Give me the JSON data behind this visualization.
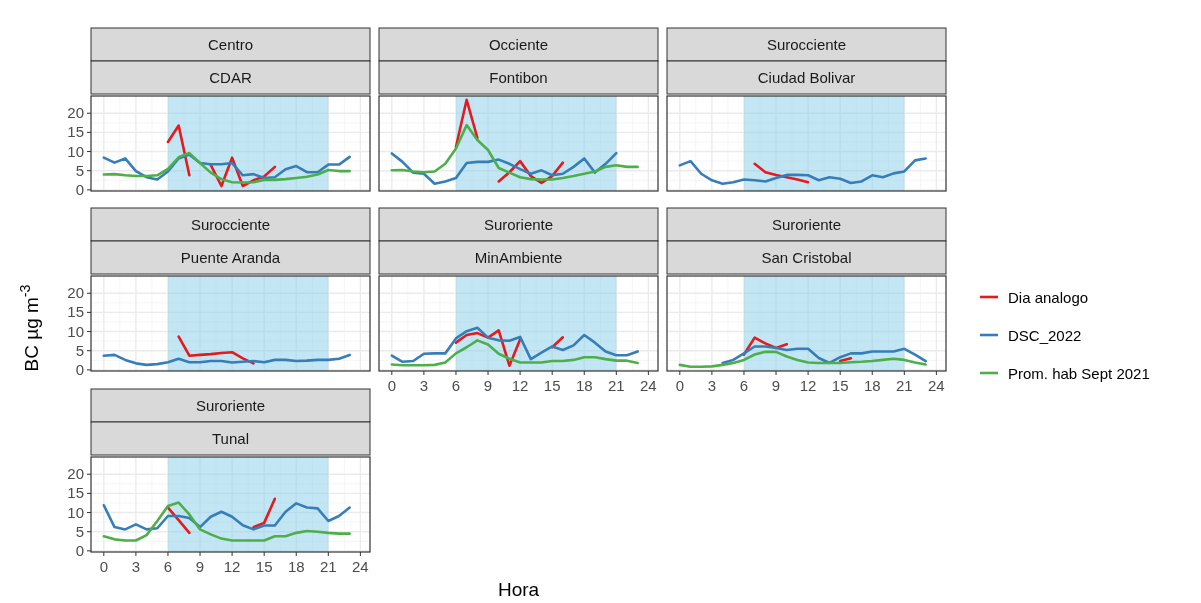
{
  "chart_data": [
    {
      "type": "line",
      "title": "Centro",
      "subtitle": "CDAR",
      "ylabel": "BC µg m$^{-3}$",
      "legend": "right",
      "grid": true,
      "tick_labels": "y",
      "x": [
        0,
        1,
        2,
        3,
        4,
        5,
        6,
        7,
        8,
        9,
        10,
        11,
        12,
        13,
        14,
        15,
        16,
        17,
        18,
        19,
        20,
        21,
        22,
        23
      ],
      "xlim": [
        -1.2,
        24.9
      ],
      "xticks": [
        0,
        3,
        6,
        9,
        12,
        15,
        18,
        21,
        24
      ],
      "ylim": [
        -0.3,
        24.5
      ],
      "yticks": [
        0,
        5,
        10,
        15,
        20
      ],
      "bands": [
        {
          "axis": "x",
          "from": 6,
          "to": 21,
          "color": "#87ceeb"
        }
      ],
      "series": [
        {
          "name": "Dia analogo",
          "color": "#e41a1c",
          "values": [
            null,
            null,
            null,
            null,
            null,
            null,
            12.5,
            16.8,
            3.8,
            null,
            6.5,
            1,
            8.4,
            1,
            2.5,
            3.5,
            6,
            null,
            null,
            null,
            null,
            null,
            null,
            null
          ]
        },
        {
          "name": "DSC_2022",
          "color": "#377eb8",
          "values": [
            8.4,
            7.1,
            8.2,
            4.9,
            3.3,
            2.7,
            4.8,
            8.2,
            9.2,
            7,
            6.7,
            6.7,
            7,
            3.8,
            4.1,
            3.1,
            3.3,
            5.4,
            6.2,
            4.6,
            4.6,
            6.6,
            6.6,
            8.6
          ]
        },
        {
          "name": "Prom. hab Sept 2021",
          "color": "#4daf4a",
          "values": [
            4,
            4.1,
            3.8,
            3.6,
            3.6,
            3.8,
            5.5,
            8.5,
            9.6,
            7,
            4.5,
            2.8,
            2,
            1.9,
            2,
            2.6,
            2.6,
            2.8,
            3.1,
            3.4,
            4,
            5.2,
            4.9,
            4.9
          ]
        }
      ]
    },
    {
      "type": "line",
      "title": "Occiente",
      "subtitle": "Fontibon",
      "grid": true,
      "tick_labels": false,
      "x": [
        0,
        1,
        2,
        3,
        4,
        5,
        6,
        7,
        8,
        9,
        10,
        11,
        12,
        13,
        14,
        15,
        16,
        17,
        18,
        19,
        20,
        21,
        22,
        23
      ],
      "xlim": [
        -1.2,
        24.9
      ],
      "xticks": [
        0,
        3,
        6,
        9,
        12,
        15,
        18,
        21,
        24
      ],
      "ylim": [
        -0.3,
        24.5
      ],
      "yticks": [
        0,
        5,
        10,
        15,
        20
      ],
      "bands": [
        {
          "axis": "x",
          "from": 6,
          "to": 21,
          "color": "#87ceeb"
        }
      ],
      "series": [
        {
          "color": "#e41a1c",
          "values": [
            null,
            null,
            null,
            null,
            null,
            null,
            11.2,
            23.5,
            13.6,
            null,
            2.2,
            4.6,
            7.5,
            3.6,
            1.8,
            3.6,
            7.1,
            null,
            null,
            null,
            null,
            null,
            null,
            null
          ]
        },
        {
          "color": "#377eb8",
          "values": [
            9.5,
            7.3,
            4.5,
            4.2,
            1.6,
            2.2,
            3.1,
            7,
            7.3,
            7.3,
            7.9,
            6.8,
            5.4,
            4.2,
            5.1,
            3.8,
            4.2,
            6,
            8.2,
            4.5,
            6.8,
            9.6,
            null,
            null
          ]
        },
        {
          "color": "#4daf4a",
          "values": [
            5.1,
            5.2,
            4.8,
            4.6,
            4.8,
            6.8,
            10.8,
            16.9,
            13,
            10.4,
            5.7,
            4.5,
            3.3,
            2.8,
            2.7,
            2.7,
            3.1,
            3.6,
            4.2,
            4.8,
            6,
            6.4,
            6,
            6
          ]
        }
      ]
    },
    {
      "type": "line",
      "title": "Surocciente",
      "subtitle": "Ciudad Bolivar",
      "grid": true,
      "tick_labels": false,
      "x": [
        0,
        1,
        2,
        3,
        4,
        5,
        6,
        7,
        8,
        9,
        10,
        11,
        12,
        13,
        14,
        15,
        16,
        17,
        18,
        19,
        20,
        21,
        22,
        23
      ],
      "xlim": [
        -1.2,
        24.9
      ],
      "xticks": [
        0,
        3,
        6,
        9,
        12,
        15,
        18,
        21,
        24
      ],
      "ylim": [
        -0.3,
        24.5
      ],
      "yticks": [
        0,
        5,
        10,
        15,
        20
      ],
      "bands": [
        {
          "axis": "x",
          "from": 6,
          "to": 21,
          "color": "#87ceeb"
        }
      ],
      "series": [
        {
          "color": "#e41a1c",
          "values": [
            null,
            null,
            null,
            null,
            null,
            null,
            null,
            6.8,
            4.6,
            3.9,
            3.3,
            2.7,
            2,
            null,
            null,
            null,
            null,
            null,
            null,
            null,
            null,
            null,
            null,
            null
          ]
        },
        {
          "color": "#377eb8",
          "values": [
            6.4,
            7.5,
            4.2,
            2.5,
            1.6,
            2,
            2.7,
            2.5,
            2.2,
            3.1,
            3.9,
            3.9,
            3.8,
            2.5,
            3.3,
            2.9,
            1.8,
            2.2,
            3.8,
            3.3,
            4.3,
            4.8,
            7.7,
            8.2
          ]
        }
      ]
    },
    {
      "type": "line",
      "title": "Surocciente",
      "subtitle": "Puente Aranda",
      "grid": true,
      "tick_labels": "y",
      "x": [
        0,
        1,
        2,
        3,
        4,
        5,
        6,
        7,
        8,
        9,
        10,
        11,
        12,
        13,
        14,
        15,
        16,
        17,
        18,
        19,
        20,
        21,
        22,
        23
      ],
      "xlim": [
        -1.2,
        24.9
      ],
      "xticks": [
        0,
        3,
        6,
        9,
        12,
        15,
        18,
        21,
        24
      ],
      "ylim": [
        -0.3,
        24.5
      ],
      "yticks": [
        0,
        5,
        10,
        15,
        20
      ],
      "bands": [
        {
          "axis": "x",
          "from": 6,
          "to": 21,
          "color": "#87ceeb"
        }
      ],
      "series": [
        {
          "color": "#e41a1c",
          "values": [
            null,
            null,
            null,
            null,
            null,
            null,
            null,
            8.7,
            3.7,
            3.9,
            4.1,
            4.4,
            4.6,
            3,
            1.7,
            null,
            null,
            null,
            null,
            null,
            null,
            null,
            null,
            null
          ]
        },
        {
          "color": "#377eb8",
          "values": [
            3.7,
            3.9,
            2.6,
            1.7,
            1.3,
            1.5,
            2,
            2.9,
            2,
            2,
            2.3,
            2.3,
            1.9,
            2.1,
            2.3,
            2,
            2.6,
            2.6,
            2.3,
            2.4,
            2.6,
            2.6,
            2.9,
            3.9
          ]
        }
      ]
    },
    {
      "type": "line",
      "title": "Suroriente",
      "subtitle": "MinAmbiente",
      "xlabel": "Hora",
      "grid": true,
      "tick_labels": "x",
      "x": [
        0,
        1,
        2,
        3,
        4,
        5,
        6,
        7,
        8,
        9,
        10,
        11,
        12,
        13,
        14,
        15,
        16,
        17,
        18,
        19,
        20,
        21,
        22,
        23
      ],
      "xlim": [
        -1.2,
        24.9
      ],
      "xticks": [
        0,
        3,
        6,
        9,
        12,
        15,
        18,
        21,
        24
      ],
      "ylim": [
        -0.3,
        24.5
      ],
      "yticks": [
        0,
        5,
        10,
        15,
        20
      ],
      "bands": [
        {
          "axis": "x",
          "from": 6,
          "to": 21,
          "color": "#87ceeb"
        }
      ],
      "series": [
        {
          "color": "#e41a1c",
          "values": [
            null,
            null,
            null,
            null,
            null,
            null,
            7.1,
            9.1,
            9.6,
            8.4,
            10.3,
            1.1,
            7.9,
            null,
            null,
            5.9,
            8.5,
            null,
            null,
            null,
            null,
            null,
            null,
            null
          ]
        },
        {
          "color": "#377eb8",
          "values": [
            3.7,
            2.1,
            2.3,
            4.2,
            4.3,
            4.3,
            8.2,
            10.1,
            11,
            8.4,
            7.7,
            7.6,
            8.6,
            2.8,
            4.5,
            6.1,
            5.2,
            6.4,
            9.1,
            7.1,
            4.8,
            3.8,
            3.8,
            4.8
          ]
        },
        {
          "color": "#4daf4a",
          "values": [
            1.4,
            1.2,
            1.2,
            1.2,
            1.3,
            1.9,
            4.3,
            5.9,
            7.7,
            6.6,
            4.2,
            2.9,
            1.9,
            1.9,
            1.9,
            2.3,
            2.3,
            2.6,
            3.3,
            3.3,
            2.8,
            2.4,
            2.4,
            1.8
          ]
        }
      ]
    },
    {
      "type": "line",
      "title": "Suroriente",
      "subtitle": "San Cristobal",
      "grid": true,
      "tick_labels": "x",
      "x": [
        0,
        1,
        2,
        3,
        4,
        5,
        6,
        7,
        8,
        9,
        10,
        11,
        12,
        13,
        14,
        15,
        16,
        17,
        18,
        19,
        20,
        21,
        22,
        23
      ],
      "xlim": [
        -1.2,
        24.9
      ],
      "xticks": [
        0,
        3,
        6,
        9,
        12,
        15,
        18,
        21,
        24
      ],
      "ylim": [
        -0.3,
        24.5
      ],
      "yticks": [
        0,
        5,
        10,
        15,
        20
      ],
      "bands": [
        {
          "axis": "x",
          "from": 6,
          "to": 21,
          "color": "#87ceeb"
        }
      ],
      "series": [
        {
          "color": "#e41a1c",
          "values": [
            null,
            null,
            null,
            null,
            null,
            null,
            4,
            8.4,
            6.9,
            5.7,
            6.7,
            null,
            null,
            null,
            null,
            2.3,
            3,
            null,
            null,
            null,
            null,
            null,
            null,
            null
          ]
        },
        {
          "color": "#377eb8",
          "values": [
            null,
            null,
            null,
            null,
            1.8,
            2.6,
            4.3,
            6.1,
            6.1,
            5.7,
            5.2,
            5.5,
            5.5,
            3.1,
            1.8,
            3.3,
            4.3,
            4.3,
            4.8,
            4.8,
            4.8,
            5.5,
            4,
            2.3
          ]
        },
        {
          "color": "#4daf4a",
          "values": [
            1.3,
            0.8,
            0.8,
            0.9,
            1.3,
            1.8,
            2.6,
            4,
            4.7,
            4.7,
            3.5,
            2.6,
            1.9,
            1.8,
            1.8,
            1.8,
            2,
            2.1,
            2.3,
            2.6,
            2.9,
            2.6,
            1.9,
            1.4
          ]
        }
      ]
    },
    {
      "type": "line",
      "title": "Suroriente",
      "subtitle": "Tunal",
      "grid": true,
      "x": [
        0,
        1,
        2,
        3,
        4,
        5,
        6,
        7,
        8,
        9,
        10,
        11,
        12,
        13,
        14,
        15,
        16,
        17,
        18,
        19,
        20,
        21,
        22,
        23
      ],
      "xlim": [
        -1.2,
        24.9
      ],
      "xticks": [
        0,
        3,
        6,
        9,
        12,
        15,
        18,
        21,
        24
      ],
      "ylim": [
        -0.3,
        24.5
      ],
      "yticks": [
        0,
        5,
        10,
        15,
        20
      ],
      "bands": [
        {
          "axis": "x",
          "from": 6,
          "to": 21,
          "color": "#87ceeb"
        }
      ],
      "series": [
        {
          "color": "#e41a1c",
          "values": [
            null,
            null,
            null,
            null,
            null,
            null,
            11.3,
            8,
            4.7,
            null,
            null,
            null,
            null,
            null,
            6.2,
            7.3,
            13.6,
            null,
            null,
            null,
            null,
            null,
            null,
            null
          ]
        },
        {
          "color": "#377eb8",
          "values": [
            11.9,
            6.2,
            5.6,
            6.9,
            5.6,
            5.9,
            9.1,
            9.1,
            8.6,
            6.2,
            8.9,
            10.2,
            8.9,
            6.7,
            5.6,
            6.6,
            6.6,
            10.2,
            12.4,
            11.3,
            11.1,
            7.8,
            9.1,
            11.3
          ]
        },
        {
          "color": "#4daf4a",
          "values": [
            3.8,
            3,
            2.7,
            2.7,
            4.1,
            7.8,
            11.7,
            12.6,
            9.5,
            5.6,
            4.3,
            3.2,
            2.7,
            2.7,
            2.7,
            2.7,
            3.8,
            3.8,
            4.7,
            5.2,
            5,
            4.7,
            4.5,
            4.5
          ]
        }
      ]
    }
  ]
}
